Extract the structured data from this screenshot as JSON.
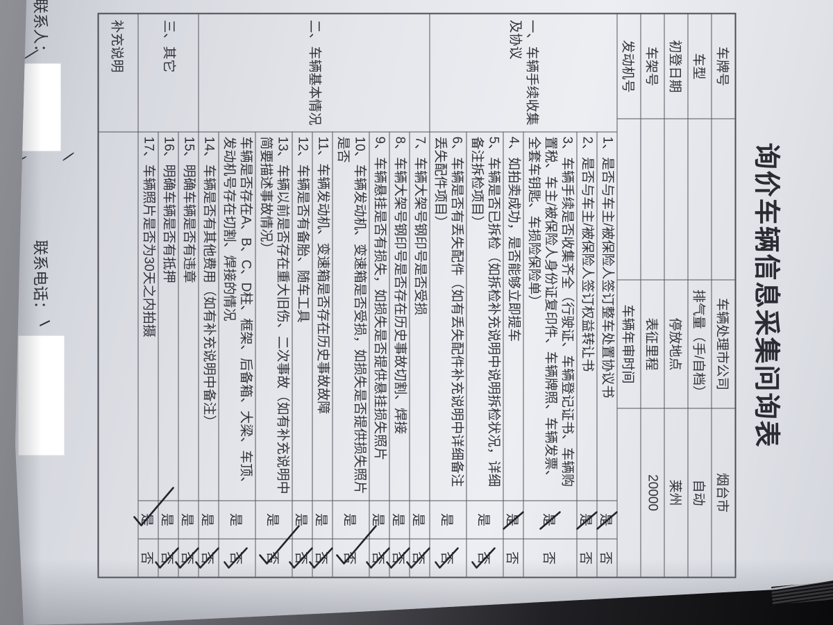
{
  "title": "询价车辆信息采集问询表",
  "vehicle_header": {
    "rows": [
      {
        "label": "车牌号",
        "value": "",
        "label2": "车辆处理市公司",
        "value2": "烟台市"
      },
      {
        "label": "车型",
        "value": "",
        "label2": "排气量（手/自档）",
        "value2": "自动"
      },
      {
        "label": "初登日期",
        "value": "",
        "label2": "停放地点",
        "value2": "莱州"
      },
      {
        "label": "车架号",
        "value": "",
        "label2": "表征里程",
        "value2": "20000"
      },
      {
        "label": "发动机号",
        "value": "",
        "label2": "车辆年审时间",
        "value2": ""
      }
    ]
  },
  "survey": {
    "yes_label": "是",
    "no_label": "否",
    "sections": [
      {
        "label": "一、车辆手续收集及协议",
        "rows": [
          {
            "num": "1、",
            "text": "是否与车主/被保险人签订整车处置协议书",
            "answer": "yes",
            "mark": "slash"
          },
          {
            "num": "2、",
            "text": "是否与车主/被保险人签订权益转让书",
            "answer": "yes",
            "mark": "slash"
          },
          {
            "num": "3、",
            "text": "车辆手续是否收集齐全（行驶证、车辆登记证书、车辆购置税、车主/被保险人身份证复印件、车辆牌照、车辆发票、全套车钥匙、车损险保险单）",
            "answer": "yes",
            "mark": "slash"
          },
          {
            "num": "4、",
            "text": "如拍卖成功，是否能够立即提车",
            "answer": "yes",
            "mark": "slash"
          },
          {
            "num": "5、",
            "text": "车辆是否已拆检（如拆检补充说明中说明拆检状况，详细备注拆检项目）",
            "answer": "no",
            "mark": "check"
          },
          {
            "num": "6、",
            "text": "车辆是否有丢失配件（如有丢失配件补充说明中详细备注丢失配件项目）",
            "answer": "no",
            "mark": "check"
          }
        ]
      },
      {
        "label": "二、车辆基本情况",
        "rows": [
          {
            "num": "7、",
            "text": "车辆大架号钢印号是否受损",
            "answer": "no",
            "mark": "check"
          },
          {
            "num": "8、",
            "text": "车辆大架号钢印号是否存在历史事故切割、焊接",
            "answer": "no",
            "mark": "check"
          },
          {
            "num": "9、",
            "text": "车辆悬挂是否有损失，如损失是否提供悬挂损失照片",
            "answer": "no",
            "mark": "check"
          },
          {
            "num": "10、",
            "text": "车辆发动机、变速箱是否受损，如损失是否提供损失照片是否",
            "answer": "no",
            "mark": "check-big"
          },
          {
            "num": "11、",
            "text": "车辆发动机、变速箱是否存在历史事故故障",
            "answer": "no",
            "mark": "check"
          },
          {
            "num": "12、",
            "text": "车辆是否有备胎、随车工具",
            "answer": "no",
            "mark": "check"
          },
          {
            "num": "13、",
            "text": "车辆以前是否存在重大旧伤、二次事故（如有补充说明中简要描述事故情况）",
            "answer": "no",
            "mark": "check-big"
          },
          {
            "num": "",
            "text": "车辆是否存在A、B、C、D柱、框架、后备箱、大梁、车顶、发动机号存在切割、焊接的情况",
            "answer": "no",
            "mark": "check"
          },
          {
            "num": "14、",
            "text": "车辆是否有其他费用（如有补充说明中备注）",
            "answer": "no",
            "mark": "check"
          }
        ]
      },
      {
        "label": "三、其它",
        "rows": [
          {
            "num": "15、",
            "text": "明确车辆是否有违章",
            "answer": "no",
            "mark": "check"
          },
          {
            "num": "16、",
            "text": "明确车辆是否有抵押",
            "answer": "no",
            "mark": "check"
          },
          {
            "num": "17、",
            "text": "车辆照片是否为30天之内拍摄",
            "answer": "yes",
            "mark": "check-big"
          }
        ]
      }
    ],
    "notes_row_label": "补充说明"
  },
  "footer": {
    "contact_name_label": "联系人：",
    "contact_phone_label": "联系电话："
  }
}
